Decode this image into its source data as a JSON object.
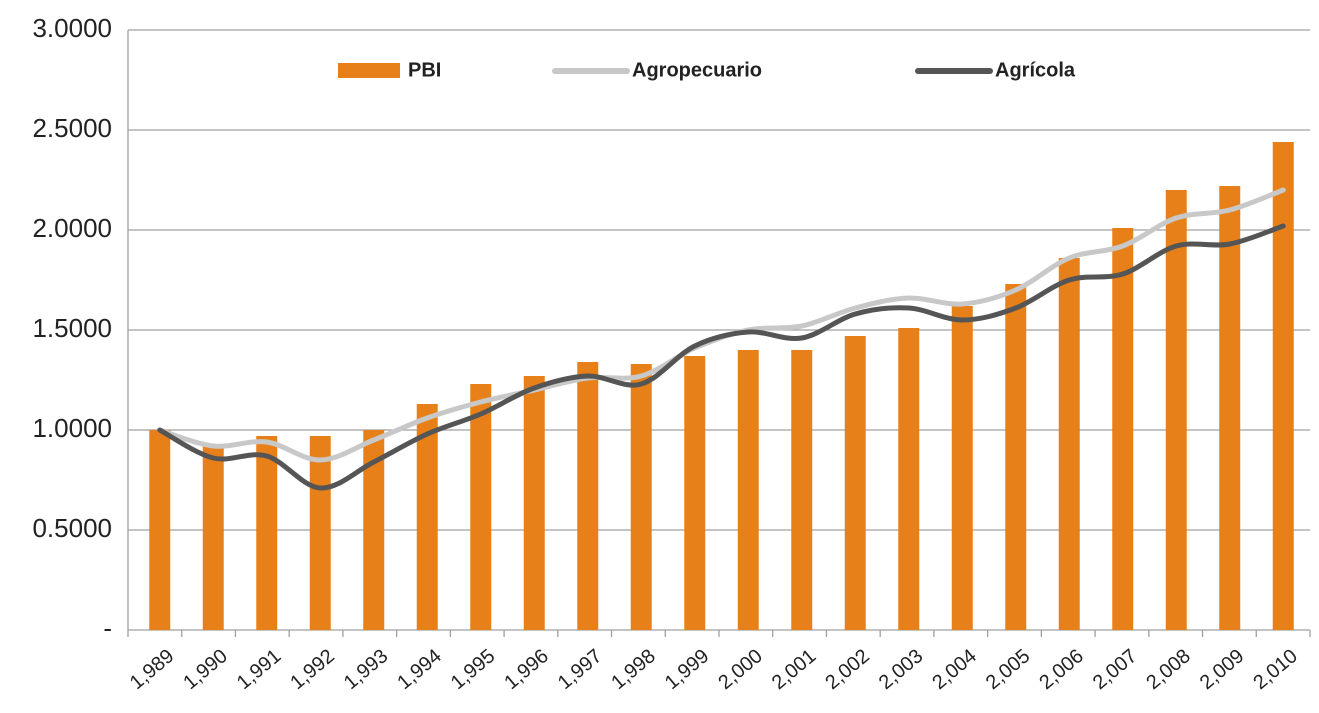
{
  "chart_data": {
    "type": "bar_line",
    "categories": [
      "1,989",
      "1,990",
      "1,991",
      "1,992",
      "1,993",
      "1,994",
      "1,995",
      "1,996",
      "1,997",
      "1,998",
      "1,999",
      "2,000",
      "2,001",
      "2,002",
      "2,003",
      "2,004",
      "2,005",
      "2,006",
      "2,007",
      "2,008",
      "2,009",
      "2,010"
    ],
    "series": [
      {
        "name": "PBI",
        "type": "bar",
        "color": "#e8801a",
        "values": [
          1.0,
          0.93,
          0.97,
          0.97,
          1.0,
          1.13,
          1.23,
          1.27,
          1.34,
          1.33,
          1.37,
          1.4,
          1.4,
          1.47,
          1.51,
          1.62,
          1.73,
          1.86,
          2.01,
          2.2,
          2.22,
          2.44
        ]
      },
      {
        "name": "Agropecuario",
        "type": "line",
        "color": "#c8c8c8",
        "values": [
          1.0,
          0.92,
          0.94,
          0.85,
          0.95,
          1.06,
          1.14,
          1.2,
          1.26,
          1.27,
          1.41,
          1.5,
          1.52,
          1.61,
          1.66,
          1.63,
          1.7,
          1.86,
          1.92,
          2.06,
          2.1,
          2.2
        ]
      },
      {
        "name": "Agrícola",
        "type": "line",
        "color": "#555555",
        "values": [
          1.0,
          0.86,
          0.87,
          0.71,
          0.84,
          0.98,
          1.08,
          1.21,
          1.27,
          1.23,
          1.42,
          1.49,
          1.46,
          1.58,
          1.61,
          1.55,
          1.61,
          1.75,
          1.78,
          1.92,
          1.93,
          2.02
        ]
      }
    ],
    "ylim": [
      0,
      3
    ],
    "yticks": [
      {
        "value": 0,
        "label": "-"
      },
      {
        "value": 0.5,
        "label": "0.5000"
      },
      {
        "value": 1,
        "label": "1.0000"
      },
      {
        "value": 1.5,
        "label": "1.5000"
      },
      {
        "value": 2,
        "label": "2.0000"
      },
      {
        "value": 2.5,
        "label": "2.5000"
      },
      {
        "value": 3,
        "label": "3.0000"
      }
    ],
    "grid": true,
    "legend": "top"
  }
}
